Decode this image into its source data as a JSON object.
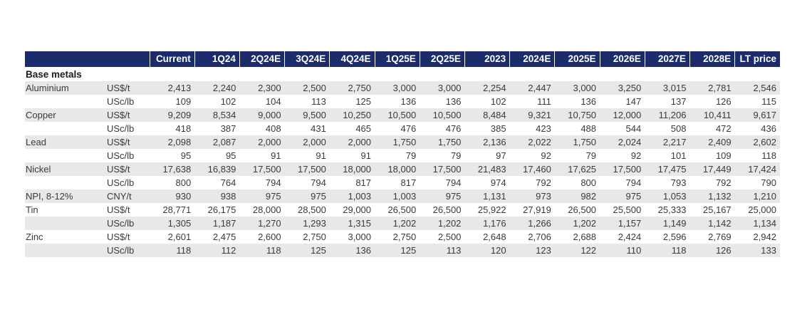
{
  "colors": {
    "header_bg": "#1b2b6b",
    "header_text": "#ffffff",
    "row_stripe": "#e8e8e8",
    "body_text": "#3a3a39"
  },
  "table": {
    "section_label": "Base metals",
    "column_headers": [
      "Current",
      "1Q24",
      "2Q24E",
      "3Q24E",
      "4Q24E",
      "1Q25E",
      "2Q25E",
      "2023",
      "2024E",
      "2025E",
      "2026E",
      "2027E",
      "2028E",
      "LT price"
    ],
    "rows": [
      {
        "metal": "Aluminium",
        "unit": "US$/t",
        "values": [
          "2,413",
          "2,240",
          "2,300",
          "2,500",
          "2,750",
          "3,000",
          "3,000",
          "2,254",
          "2,447",
          "3,000",
          "3,250",
          "3,015",
          "2,781",
          "2,546"
        ]
      },
      {
        "metal": "",
        "unit": "USc/lb",
        "values": [
          "109",
          "102",
          "104",
          "113",
          "125",
          "136",
          "136",
          "102",
          "111",
          "136",
          "147",
          "137",
          "126",
          "115"
        ]
      },
      {
        "metal": "Copper",
        "unit": "US$/t",
        "values": [
          "9,209",
          "8,534",
          "9,000",
          "9,500",
          "10,250",
          "10,500",
          "10,500",
          "8,484",
          "9,321",
          "10,750",
          "12,000",
          "11,206",
          "10,411",
          "9,617"
        ]
      },
      {
        "metal": "",
        "unit": "USc/lb",
        "values": [
          "418",
          "387",
          "408",
          "431",
          "465",
          "476",
          "476",
          "385",
          "423",
          "488",
          "544",
          "508",
          "472",
          "436"
        ]
      },
      {
        "metal": "Lead",
        "unit": "US$/t",
        "values": [
          "2,098",
          "2,087",
          "2,000",
          "2,000",
          "2,000",
          "1,750",
          "1,750",
          "2,136",
          "2,022",
          "1,750",
          "2,024",
          "2,217",
          "2,409",
          "2,602"
        ]
      },
      {
        "metal": "",
        "unit": "USc/lb",
        "values": [
          "95",
          "95",
          "91",
          "91",
          "91",
          "79",
          "79",
          "97",
          "92",
          "79",
          "92",
          "101",
          "109",
          "118"
        ]
      },
      {
        "metal": "Nickel",
        "unit": "US$/t",
        "values": [
          "17,638",
          "16,839",
          "17,500",
          "17,500",
          "18,000",
          "18,000",
          "17,500",
          "21,483",
          "17,460",
          "17,625",
          "17,500",
          "17,475",
          "17,449",
          "17,424"
        ]
      },
      {
        "metal": "",
        "unit": "USc/lb",
        "values": [
          "800",
          "764",
          "794",
          "794",
          "817",
          "817",
          "794",
          "974",
          "792",
          "800",
          "794",
          "793",
          "792",
          "790"
        ]
      },
      {
        "metal": "NPI, 8-12%",
        "unit": "CNY/t",
        "values": [
          "930",
          "938",
          "975",
          "975",
          "1,003",
          "1,003",
          "975",
          "1,131",
          "973",
          "982",
          "975",
          "1,053",
          "1,132",
          "1,210"
        ]
      },
      {
        "metal": "Tin",
        "unit": "US$/t",
        "values": [
          "28,771",
          "26,175",
          "28,000",
          "28,500",
          "29,000",
          "26,500",
          "26,500",
          "25,922",
          "27,919",
          "26,500",
          "25,500",
          "25,333",
          "25,167",
          "25,000"
        ]
      },
      {
        "metal": "",
        "unit": "USc/lb",
        "values": [
          "1,305",
          "1,187",
          "1,270",
          "1,293",
          "1,315",
          "1,202",
          "1,202",
          "1,176",
          "1,266",
          "1,202",
          "1,157",
          "1,149",
          "1,142",
          "1,134"
        ]
      },
      {
        "metal": "Zinc",
        "unit": "US$/t",
        "values": [
          "2,601",
          "2,475",
          "2,600",
          "2,750",
          "3,000",
          "2,750",
          "2,500",
          "2,648",
          "2,706",
          "2,688",
          "2,424",
          "2,596",
          "2,769",
          "2,942"
        ]
      },
      {
        "metal": "",
        "unit": "USc/lb",
        "values": [
          "118",
          "112",
          "118",
          "125",
          "136",
          "125",
          "113",
          "120",
          "123",
          "122",
          "110",
          "118",
          "126",
          "133"
        ]
      }
    ]
  }
}
